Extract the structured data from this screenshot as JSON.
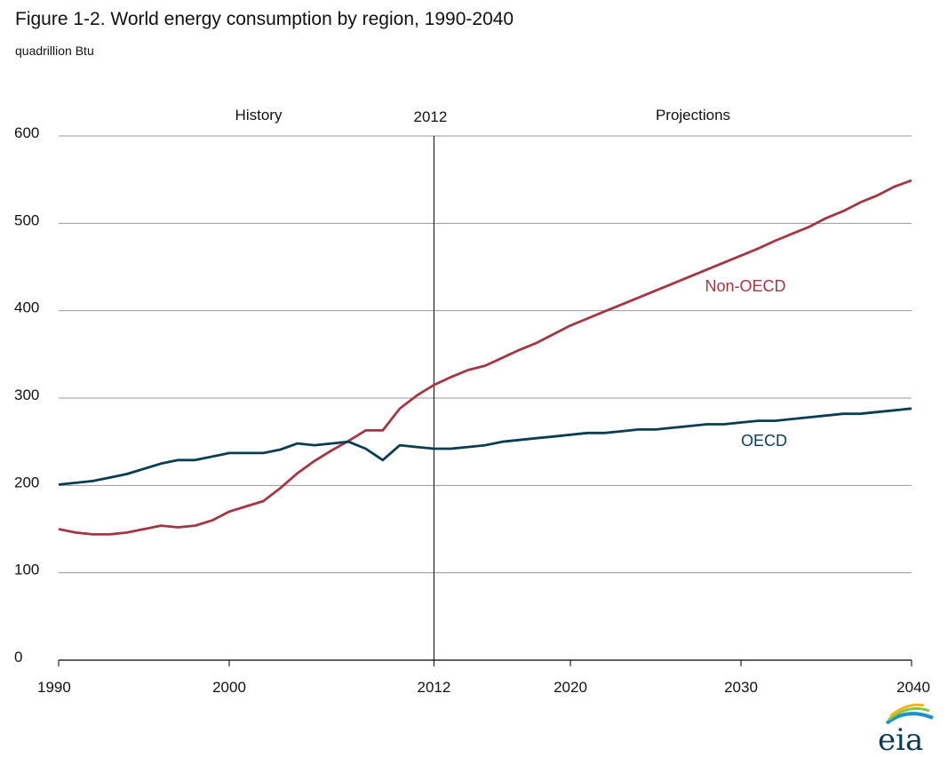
{
  "title": "Figure 1-2. World energy consumption by region, 1990-2040",
  "subtitle": "quadrillion Btu",
  "logo_text": "eia",
  "colors": {
    "oecd": "#0b3d52",
    "non_oecd": "#a13644",
    "grid": "#9a9a9a",
    "axis": "#000000"
  },
  "chart_data": {
    "type": "line",
    "title": "Figure 1-2. World energy consumption by region, 1990-2040",
    "ylabel": "quadrillion Btu",
    "xlim": [
      1990,
      2040
    ],
    "ylim": [
      0,
      600
    ],
    "x_ticks": [
      1990,
      2000,
      2012,
      2020,
      2030,
      2040
    ],
    "y_ticks": [
      0,
      100,
      200,
      300,
      400,
      500,
      600
    ],
    "grid": true,
    "annotations": {
      "history": "History",
      "divider": "2012",
      "projections": "Projections",
      "divider_year": 2012
    },
    "x": [
      1990,
      1991,
      1992,
      1993,
      1994,
      1995,
      1996,
      1997,
      1998,
      1999,
      2000,
      2001,
      2002,
      2003,
      2004,
      2005,
      2006,
      2007,
      2008,
      2009,
      2010,
      2011,
      2012,
      2013,
      2014,
      2015,
      2016,
      2017,
      2018,
      2019,
      2020,
      2021,
      2022,
      2023,
      2024,
      2025,
      2026,
      2027,
      2028,
      2029,
      2030,
      2031,
      2032,
      2033,
      2034,
      2035,
      2036,
      2037,
      2038,
      2039,
      2040
    ],
    "series": [
      {
        "name": "Non-OECD",
        "color": "#a13644",
        "values": [
          150,
          146,
          144,
          144,
          146,
          150,
          154,
          152,
          154,
          160,
          170,
          176,
          182,
          197,
          214,
          228,
          240,
          251,
          263,
          263,
          288,
          303,
          315,
          324,
          332,
          337,
          346,
          355,
          363,
          373,
          383,
          391,
          399,
          407,
          415,
          423,
          431,
          439,
          447,
          455,
          463,
          471,
          480,
          488,
          496,
          506,
          514,
          524,
          532,
          542,
          549
        ]
      },
      {
        "name": "OECD",
        "color": "#0b3d52",
        "values": [
          201,
          203,
          205,
          209,
          213,
          219,
          225,
          229,
          229,
          233,
          237,
          237,
          237,
          241,
          248,
          246,
          248,
          250,
          242,
          229,
          246,
          244,
          242,
          242,
          244,
          246,
          250,
          252,
          254,
          256,
          258,
          260,
          260,
          262,
          264,
          264,
          266,
          268,
          270,
          270,
          272,
          274,
          274,
          276,
          278,
          280,
          282,
          282,
          284,
          286,
          288
        ]
      }
    ]
  }
}
